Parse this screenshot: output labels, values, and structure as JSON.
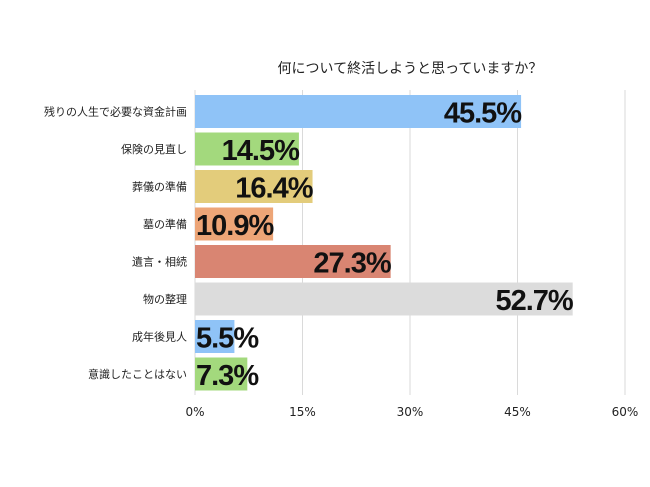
{
  "chart_data": {
    "type": "bar",
    "orientation": "horizontal",
    "title": "何について終活しようと思っていますか？",
    "categories": [
      "残りの人生で必要な資金計画",
      "保険の見直し",
      "葬儀の準備",
      "墓の準備",
      "遺言・相続",
      "物の整理",
      "成年後見人",
      "意識したことはない"
    ],
    "values": [
      45.5,
      14.5,
      16.4,
      10.9,
      27.3,
      52.7,
      5.5,
      7.3
    ],
    "value_labels": [
      "45.5%",
      "14.5%",
      "16.4%",
      "10.9%",
      "27.3%",
      "52.7%",
      "5.5%",
      "7.3%"
    ],
    "colors": [
      "#8fc3f7",
      "#a3d97d",
      "#e3cc7b",
      "#eda577",
      "#d98572",
      "#dcdcdc",
      "#8fc3f7",
      "#a3d97d"
    ],
    "xlim": [
      0,
      60
    ],
    "ticks": [
      0,
      15,
      30,
      45,
      60
    ],
    "tick_labels": [
      "0%",
      "15%",
      "30%",
      "45%",
      "60%"
    ],
    "grid": true,
    "xlabel": "",
    "ylabel": ""
  }
}
